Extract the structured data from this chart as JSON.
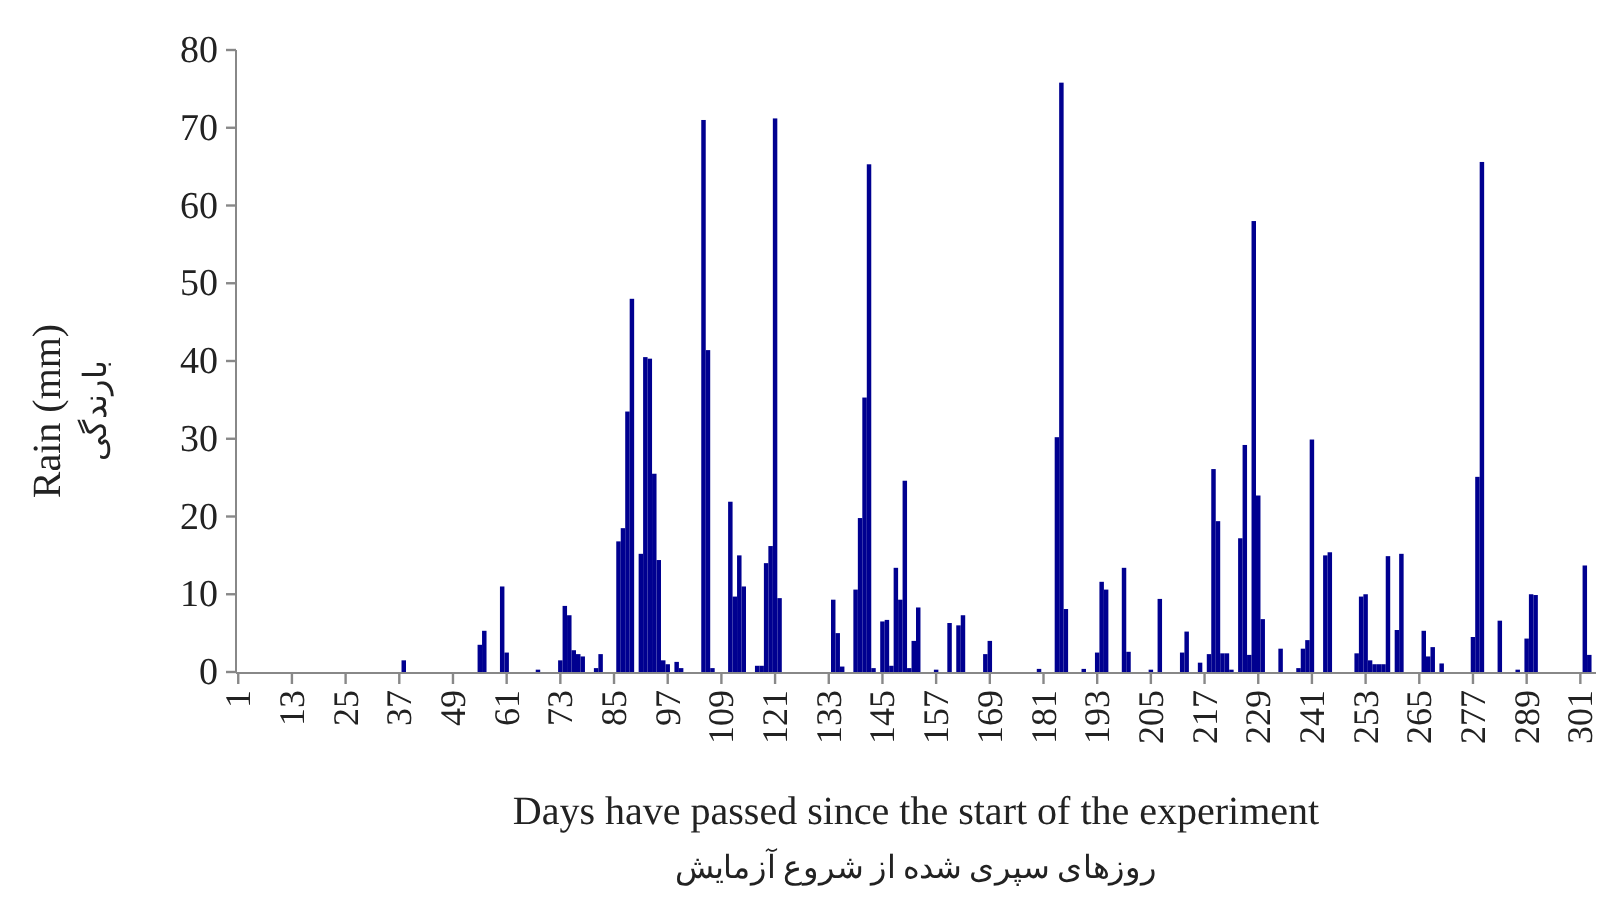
{
  "chart_data": {
    "type": "bar",
    "color": "#000090",
    "xlabel": "Days have passed since the start of the experiment\nروزهای سپری شده از شروع آزمایش",
    "ylabel": "Rain (mm)\nبارندگی",
    "ylim": [
      0,
      80
    ],
    "yticks": [
      0,
      10,
      20,
      30,
      40,
      50,
      60,
      70,
      80
    ],
    "grid": false,
    "categories": [
      "1",
      null,
      null,
      null,
      null,
      null,
      null,
      null,
      null,
      null,
      null,
      null,
      "13",
      null,
      null,
      null,
      null,
      null,
      null,
      null,
      null,
      null,
      null,
      null,
      "25",
      null,
      null,
      null,
      null,
      null,
      null,
      null,
      null,
      null,
      null,
      null,
      "37",
      null,
      null,
      null,
      null,
      null,
      null,
      null,
      null,
      null,
      null,
      null,
      "49",
      null,
      null,
      null,
      null,
      null,
      null,
      null,
      null,
      null,
      null,
      null,
      "61",
      null,
      null,
      null,
      null,
      null,
      null,
      null,
      null,
      null,
      null,
      null,
      "73",
      null,
      null,
      null,
      null,
      null,
      null,
      null,
      null,
      null,
      null,
      null,
      "85",
      null,
      null,
      null,
      null,
      null,
      null,
      null,
      null,
      null,
      null,
      null,
      "97",
      null,
      null,
      null,
      null,
      null,
      null,
      null,
      null,
      null,
      null,
      null,
      "109",
      null,
      null,
      null,
      null,
      null,
      null,
      null,
      null,
      null,
      null,
      null,
      "121",
      null,
      null,
      null,
      null,
      null,
      null,
      null,
      null,
      null,
      null,
      null,
      "133",
      null,
      null,
      null,
      null,
      null,
      null,
      null,
      null,
      null,
      null,
      null,
      "145",
      null,
      null,
      null,
      null,
      null,
      null,
      null,
      null,
      null,
      null,
      null,
      "157",
      null,
      null,
      null,
      null,
      null,
      null,
      null,
      null,
      null,
      null,
      null,
      "169",
      null,
      null,
      null,
      null,
      null,
      null,
      null,
      null,
      null,
      null,
      null,
      "181",
      null,
      null,
      null,
      null,
      null,
      null,
      null,
      null,
      null,
      null,
      null,
      "193",
      null,
      null,
      null,
      null,
      null,
      null,
      null,
      null,
      null,
      null,
      null,
      "205",
      null,
      null,
      null,
      null,
      null,
      null,
      null,
      null,
      null,
      null,
      null,
      "217",
      null,
      null,
      null,
      null,
      null,
      null,
      null,
      null,
      null,
      null,
      null,
      "229",
      null,
      null,
      null,
      null,
      null,
      null,
      null,
      null,
      null,
      null,
      null,
      "241",
      null,
      null,
      null,
      null,
      null,
      null,
      null,
      null,
      null,
      null,
      null,
      "253",
      null,
      null,
      null,
      null,
      null,
      null,
      null,
      null,
      null,
      null,
      null,
      "265",
      null,
      null,
      null,
      null,
      null,
      null,
      null,
      null,
      null,
      null,
      null,
      "277",
      null,
      null,
      null,
      null,
      null,
      null,
      null,
      null,
      null,
      null,
      null,
      "289",
      null,
      null,
      null,
      null,
      null,
      null,
      null,
      null,
      null,
      null,
      null,
      "301",
      null,
      null,
      null
    ],
    "values": [
      0,
      0,
      0,
      0,
      0,
      0,
      0,
      0,
      0,
      0,
      0,
      0,
      0,
      0,
      0,
      0,
      0,
      0,
      0,
      0,
      0,
      0,
      0,
      0,
      0,
      0,
      0,
      0,
      0,
      0,
      0,
      0,
      0,
      0,
      0,
      0,
      0,
      1.5,
      0,
      0,
      0,
      0,
      0,
      0,
      0,
      0,
      0,
      0,
      0,
      0,
      0,
      0,
      0,
      0,
      3.5,
      5.3,
      0,
      0,
      0,
      11,
      2.5,
      0,
      0,
      0,
      0,
      0,
      0,
      0.3,
      0,
      0,
      0,
      0,
      1.5,
      8.5,
      7.3,
      2.8,
      2.3,
      2,
      0,
      0,
      0.5,
      2.3,
      0,
      0,
      0,
      16.8,
      18.5,
      33.5,
      48,
      0,
      15.2,
      40.5,
      40.3,
      25.5,
      14.4,
      1.5,
      1,
      0,
      1.3,
      0.5,
      0,
      0,
      0,
      0,
      71,
      41.4,
      0.5,
      0,
      0,
      0,
      21.9,
      9.7,
      15,
      11,
      0,
      0,
      0.8,
      0.8,
      14,
      16.2,
      71.2,
      9.5,
      0,
      0,
      0,
      0,
      0,
      0,
      0,
      0,
      0,
      0,
      0,
      9.3,
      5,
      0.7,
      0,
      0,
      10.6,
      19.8,
      35.3,
      65.3,
      0.5,
      0,
      6.5,
      6.7,
      0.8,
      13.4,
      9.3,
      24.6,
      0.5,
      4,
      8.3,
      0,
      0,
      0,
      0.3,
      0,
      0,
      6.3,
      0,
      6,
      7.3,
      0,
      0,
      0,
      0,
      2.3,
      4,
      0,
      0,
      0,
      0,
      0,
      0,
      0,
      0,
      0,
      0,
      0.4,
      0,
      0,
      0,
      30.2,
      75.8,
      8.1,
      0,
      0,
      0,
      0.4,
      0,
      0,
      2.5,
      11.6,
      10.6,
      0,
      0,
      0,
      13.4,
      2.6,
      0,
      0,
      0,
      0,
      0.3,
      0,
      9.4,
      0,
      0,
      0,
      0,
      2.5,
      5.2,
      0,
      0,
      1.2,
      0,
      2.3,
      26.1,
      19.4,
      2.4,
      2.4,
      0.3,
      0,
      17.2,
      29.2,
      2.2,
      58,
      22.7,
      6.8,
      0,
      0,
      0,
      3,
      0,
      0,
      0,
      0.5,
      3,
      4.1,
      29.9,
      0,
      0,
      15,
      15.4,
      0,
      0,
      0,
      0,
      0,
      2.4,
      9.7,
      10,
      1.5,
      1,
      1,
      1,
      14.9,
      0,
      5.4,
      15.2,
      0,
      0,
      0,
      0,
      5.3,
      2,
      3.2,
      0,
      1.1,
      0,
      0,
      0,
      0,
      0,
      0,
      4.5,
      25.1,
      65.6,
      0,
      0,
      0,
      6.6,
      0,
      0,
      0,
      0.3,
      0,
      4.3,
      10,
      9.9,
      0,
      0,
      0,
      0,
      0,
      0,
      0,
      0,
      0,
      0,
      13.7,
      2.2,
      0
    ]
  }
}
